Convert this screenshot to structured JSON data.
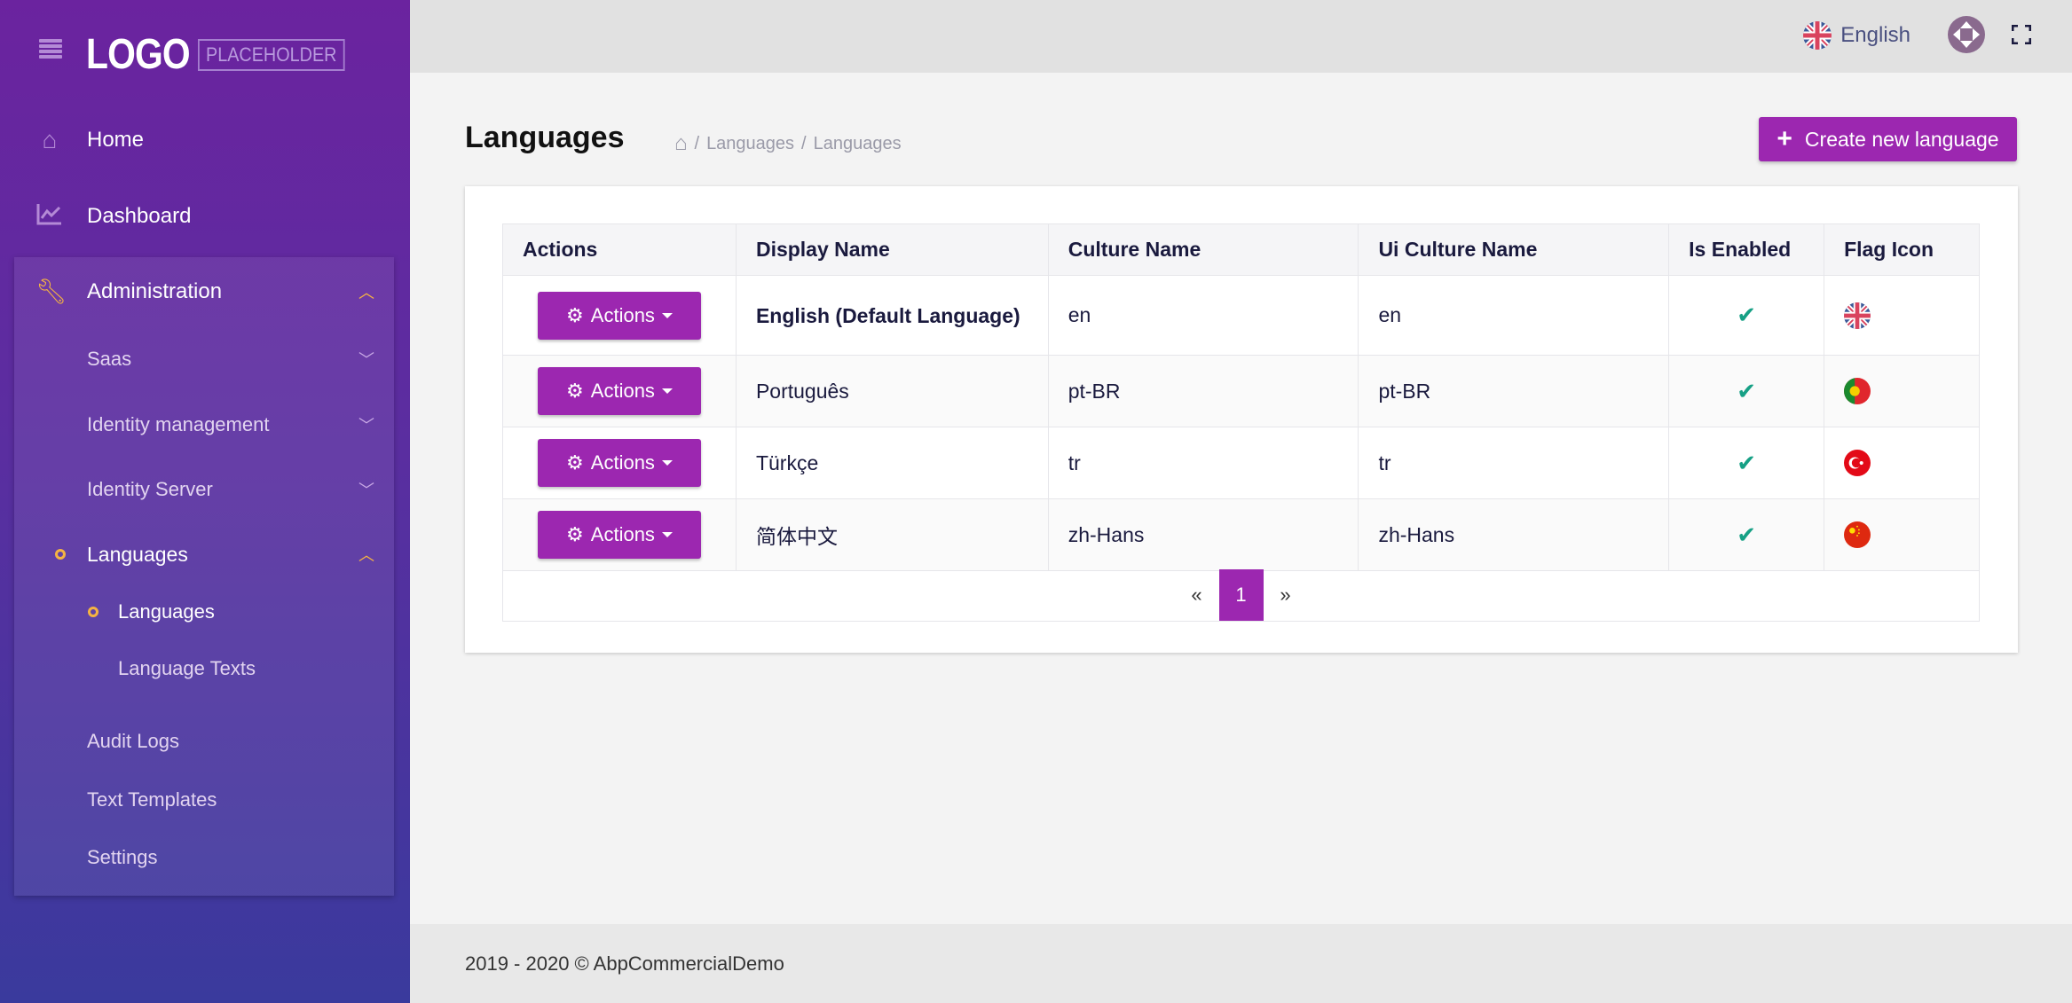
{
  "logo": {
    "text_main": "LOGO",
    "text_box": "PLACEHOLDER"
  },
  "sidebar": {
    "home": "Home",
    "dashboard": "Dashboard",
    "administration": "Administration",
    "saas": "Saas",
    "identity_management": "Identity management",
    "identity_server": "Identity Server",
    "languages_group": "Languages",
    "languages": "Languages",
    "language_texts": "Language Texts",
    "audit_logs": "Audit Logs",
    "text_templates": "Text Templates",
    "settings": "Settings"
  },
  "topbar": {
    "language": "English"
  },
  "page": {
    "title": "Languages",
    "breadcrumb": [
      "Languages",
      "Languages"
    ],
    "create_button": "Create new language"
  },
  "table": {
    "headers": [
      "Actions",
      "Display Name",
      "Culture Name",
      "Ui Culture Name",
      "Is Enabled",
      "Flag Icon"
    ],
    "action_label": "Actions",
    "rows": [
      {
        "display": "English (Default Language)",
        "culture": "en",
        "ui_culture": "en",
        "enabled": true,
        "flag": "gb"
      },
      {
        "display": "Português",
        "culture": "pt-BR",
        "ui_culture": "pt-BR",
        "enabled": true,
        "flag": "pt"
      },
      {
        "display": "Türkçe",
        "culture": "tr",
        "ui_culture": "tr",
        "enabled": true,
        "flag": "tr"
      },
      {
        "display": "简体中文",
        "culture": "zh-Hans",
        "ui_culture": "zh-Hans",
        "enabled": true,
        "flag": "cn"
      }
    ]
  },
  "pagination": {
    "prev": "«",
    "current": "1",
    "next": "»"
  },
  "footer": {
    "text": "2019 - 2020 © AbpCommercialDemo"
  },
  "colors": {
    "accent": "#9c27b0",
    "check": "#16a085",
    "sidebar_top": "#6b239f",
    "sidebar_bottom": "#3a3a9d"
  }
}
